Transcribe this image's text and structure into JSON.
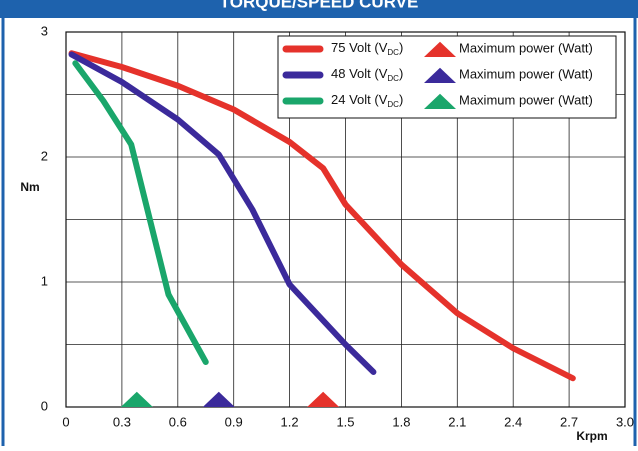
{
  "chart_data": {
    "type": "line",
    "title": "TORQUE/SPEED CURVE",
    "y_label": "Nm",
    "x_label": "Krpm",
    "xlim": [
      0,
      3
    ],
    "ylim": [
      0,
      3
    ],
    "xticks": [
      0,
      0.3,
      0.6,
      0.9,
      1.2,
      1.5,
      1.8,
      2.1,
      2.4,
      2.7,
      {
        "value": 3,
        "label": "3.0"
      }
    ],
    "yticks": [
      0,
      1,
      2,
      3
    ],
    "y_minor_grid": [
      0.5,
      1.5,
      2.5
    ],
    "grid": true,
    "legend": "top-right",
    "series": [
      {
        "name_prefix": "75 Volt (V",
        "name_sub": "DC",
        "name_suffix": ")",
        "color": "#e5322b",
        "x": [
          0.03,
          0.3,
          0.6,
          0.9,
          1.2,
          1.38,
          1.5,
          1.8,
          2.1,
          2.4,
          2.72
        ],
        "values": [
          2.83,
          2.72,
          2.57,
          2.38,
          2.12,
          1.91,
          1.62,
          1.14,
          0.75,
          0.47,
          0.23
        ],
        "max_power_x": 1.38,
        "marker_label": "Maximum power (Watt)"
      },
      {
        "name_prefix": "48 Volt (V",
        "name_sub": "DC",
        "name_suffix": ")",
        "color": "#3b2a9b",
        "x": [
          0.03,
          0.3,
          0.6,
          0.82,
          1.0,
          1.2,
          1.5,
          1.65
        ],
        "values": [
          2.82,
          2.6,
          2.3,
          2.02,
          1.58,
          0.98,
          0.5,
          0.28
        ],
        "max_power_x": 0.82,
        "marker_label": "Maximum power (Watt)"
      },
      {
        "name_prefix": "24 Volt (V",
        "name_sub": "DC",
        "name_suffix": ")",
        "color": "#1aa66b",
        "x": [
          0.05,
          0.2,
          0.35,
          0.45,
          0.55,
          0.75
        ],
        "values": [
          2.75,
          2.45,
          2.1,
          1.5,
          0.9,
          0.36
        ],
        "max_power_x": 0.38,
        "marker_label": "Maximum power (Watt)"
      }
    ]
  }
}
